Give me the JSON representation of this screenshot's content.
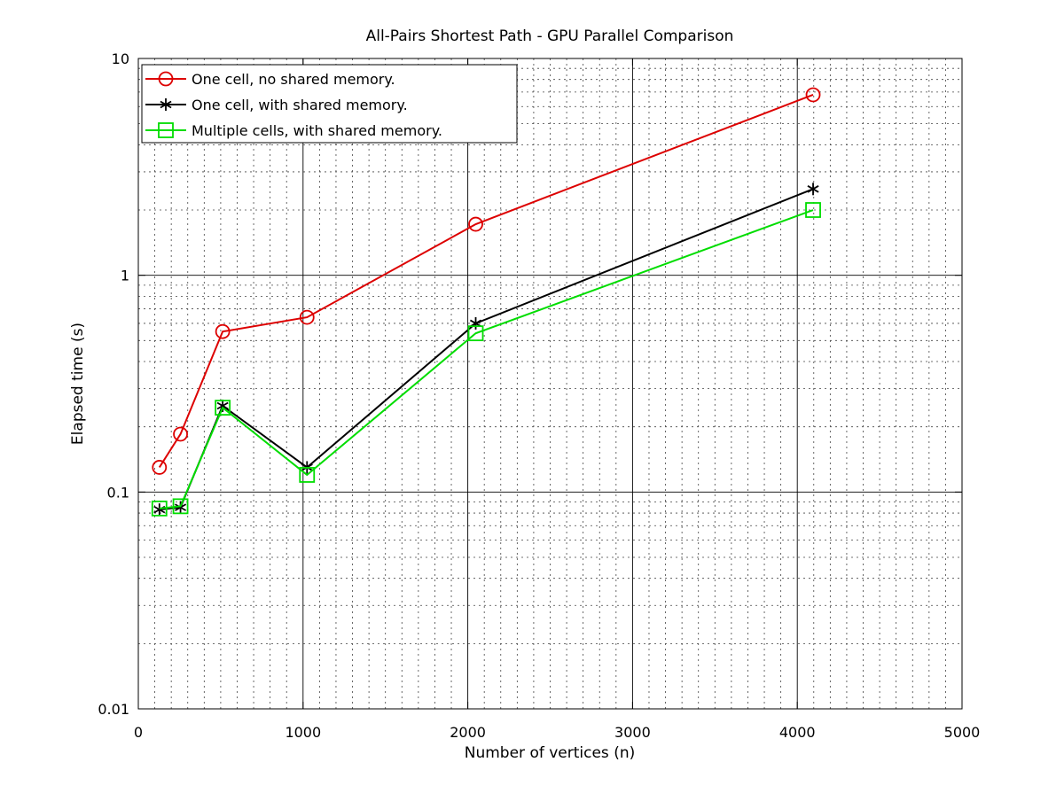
{
  "chart_data": {
    "type": "line",
    "title": "All-Pairs Shortest Path - GPU Parallel Comparison",
    "xlabel": "Number of vertices (n)",
    "ylabel": "Elapsed time (s)",
    "xlim": [
      0,
      5000
    ],
    "ylim": [
      0.01,
      10
    ],
    "yscale": "log",
    "grid": true,
    "legend_position": "top-left",
    "x_ticks": [
      0,
      1000,
      2000,
      3000,
      4000,
      5000
    ],
    "x_tick_labels": [
      "0",
      "1000",
      "2000",
      "3000",
      "4000",
      "5000"
    ],
    "y_ticks": [
      0.01,
      0.1,
      1,
      10
    ],
    "y_tick_labels": [
      "0.01",
      "0.1",
      "1",
      "10"
    ],
    "x": [
      128,
      256,
      512,
      1024,
      2048,
      4096
    ],
    "series": [
      {
        "name": "One cell, no shared memory.",
        "color": "#dd0000",
        "marker": "circle",
        "values": [
          0.13,
          0.185,
          0.55,
          0.64,
          1.72,
          6.8
        ]
      },
      {
        "name": "One cell, with shared memory.",
        "color": "#000000",
        "marker": "asterisk",
        "values": [
          0.083,
          0.085,
          0.25,
          0.13,
          0.6,
          2.5
        ]
      },
      {
        "name": "Multiple cells, with shared memory.",
        "color": "#00dd00",
        "marker": "square",
        "values": [
          0.084,
          0.086,
          0.245,
          0.12,
          0.54,
          2.0
        ]
      }
    ]
  }
}
